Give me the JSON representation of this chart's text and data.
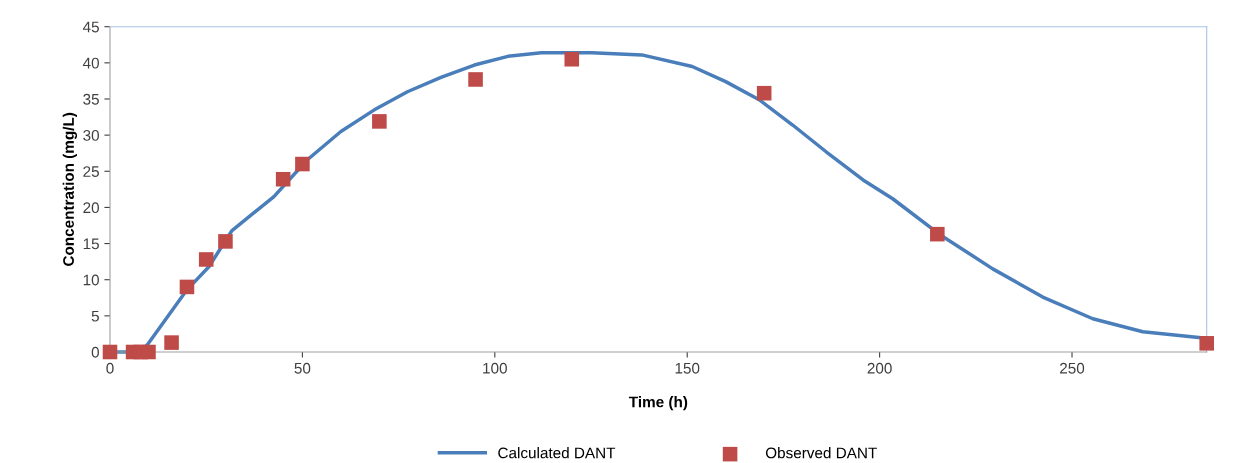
{
  "chart_data": {
    "type": "scatter",
    "xlabel": "Time (h)",
    "ylabel": "Concentration (mg/L)",
    "xlim": [
      0,
      285
    ],
    "xticks": [
      0,
      50,
      100,
      150,
      200,
      250
    ],
    "ylim": [
      0,
      45
    ],
    "yticks": [
      0,
      5,
      10,
      15,
      20,
      25,
      30,
      35,
      40,
      45
    ],
    "grid": false,
    "legend": "bottom",
    "series": [
      {
        "name": "Calculated DANT",
        "type": "line",
        "color": "#4a7ebb",
        "marker": "none",
        "line_style": "solid",
        "x": [
          0,
          8,
          10,
          20,
          25.7,
          31.7,
          42.6,
          51.3,
          60,
          68.7,
          77.3,
          86,
          94.7,
          103.4,
          112.1,
          125.2,
          138.2,
          151.3,
          160,
          168.7,
          177.4,
          186.1,
          195.7,
          203.4,
          215.5,
          229.4,
          242.4,
          255.4,
          268.4,
          285
        ],
        "values": [
          0,
          0,
          1.2,
          8.6,
          11.8,
          16.8,
          21.5,
          26.6,
          30.5,
          33.5,
          36,
          38,
          39.7,
          40.9,
          41.4,
          41.4,
          41.1,
          39.5,
          37.4,
          34.9,
          31.4,
          27.7,
          23.8,
          21.2,
          16.3,
          11.5,
          7.6,
          4.6,
          2.8,
          1.9
        ]
      },
      {
        "name": "Observed DANT",
        "color": "#be4b48",
        "marker": "square",
        "x": [
          0,
          6,
          8,
          10,
          16,
          20,
          25,
          30,
          45,
          50,
          70,
          95,
          120,
          170,
          215,
          285
        ],
        "values": [
          0,
          0,
          0,
          0,
          1.3,
          9,
          12.8,
          15.3,
          23.9,
          26,
          31.9,
          37.7,
          40.5,
          35.8,
          16.3,
          1.2
        ]
      }
    ]
  }
}
